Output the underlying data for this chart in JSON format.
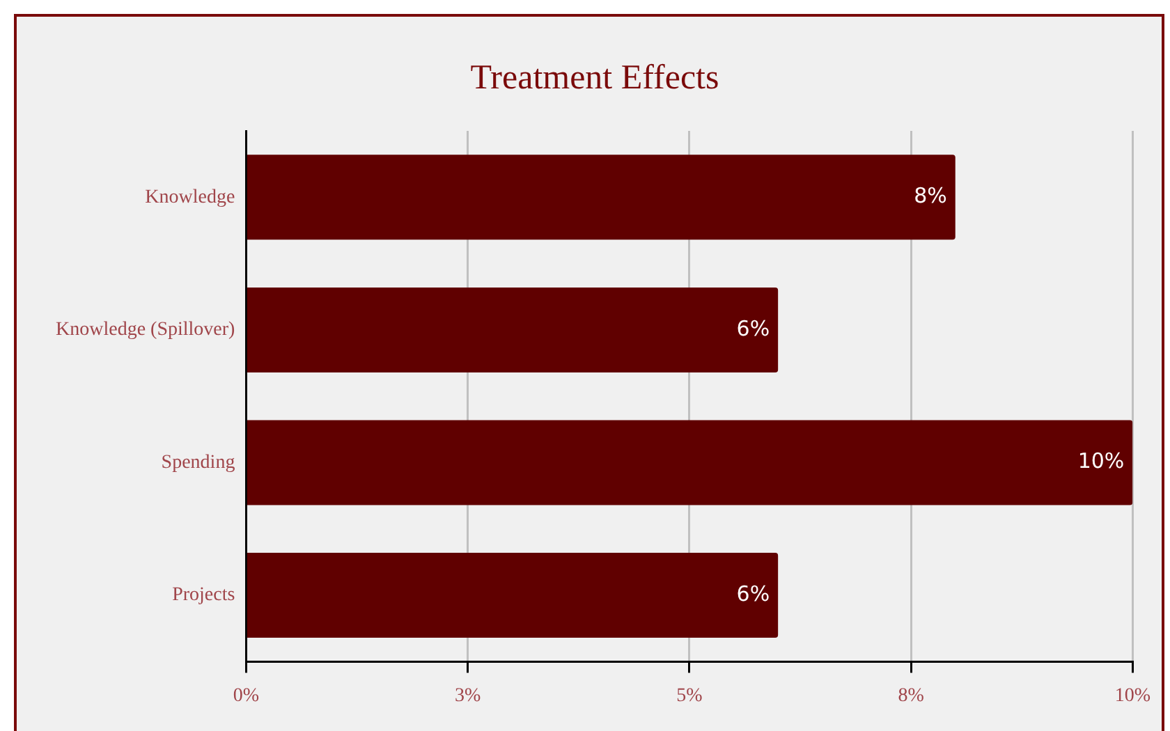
{
  "chart_data": {
    "type": "bar",
    "orientation": "horizontal",
    "title": "Treatment Effects",
    "categories": [
      "Knowledge",
      "Knowledge (Spillover)",
      "Spending",
      "Projects"
    ],
    "values": [
      8,
      6,
      10,
      6
    ],
    "color": "#600000",
    "value_labels": [
      "8%",
      "6%",
      "10%",
      "6%"
    ],
    "xlim": [
      0,
      10
    ],
    "xticks": [
      {
        "value": 0,
        "label": "0%"
      },
      {
        "value": 2.5,
        "label": "3%"
      },
      {
        "value": 5,
        "label": "5%"
      },
      {
        "value": 7.5,
        "label": "8%"
      },
      {
        "value": 10,
        "label": "10%"
      }
    ],
    "grid": "x",
    "legend": false
  }
}
